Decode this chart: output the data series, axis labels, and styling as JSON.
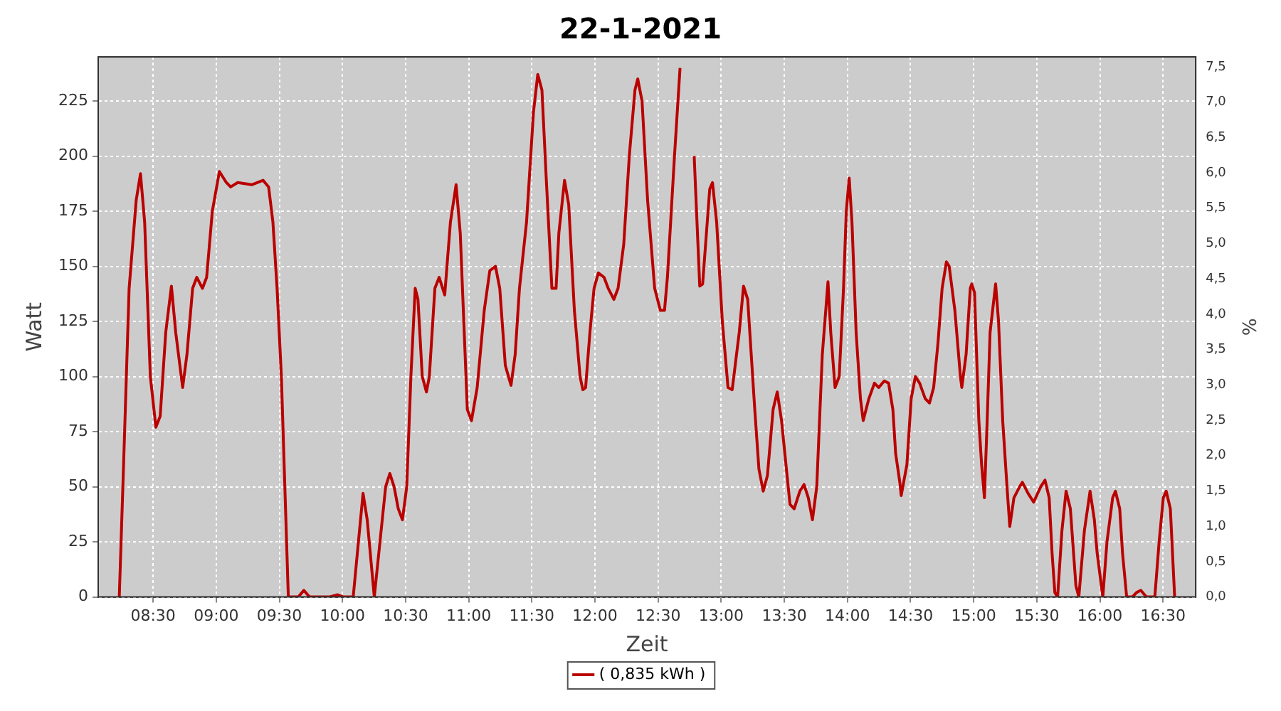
{
  "chart_data": {
    "type": "line",
    "title": "22-1-2021",
    "xlabel": "Zeit",
    "ylabel": "Watt",
    "y2label": "%",
    "xlim": [
      8.065,
      16.759
    ],
    "xticks": [
      {
        "value": 8.5,
        "label": "08:30"
      },
      {
        "value": 9,
        "label": "09:00"
      },
      {
        "value": 9.5,
        "label": "09:30"
      },
      {
        "value": 10,
        "label": "10:00"
      },
      {
        "value": 10.5,
        "label": "10:30"
      },
      {
        "value": 11,
        "label": "11:00"
      },
      {
        "value": 11.5,
        "label": "11:30"
      },
      {
        "value": 12,
        "label": "12:00"
      },
      {
        "value": 12.5,
        "label": "12:30"
      },
      {
        "value": 13,
        "label": "13:00"
      },
      {
        "value": 13.5,
        "label": "13:30"
      },
      {
        "value": 14,
        "label": "14:00"
      },
      {
        "value": 14.5,
        "label": "14:30"
      },
      {
        "value": 15,
        "label": "15:00"
      },
      {
        "value": 15.5,
        "label": "15:30"
      },
      {
        "value": 16,
        "label": "16:00"
      },
      {
        "value": 16.5,
        "label": "16:30"
      }
    ],
    "ylim": [
      0,
      245
    ],
    "yticks": [
      0,
      25,
      50,
      75,
      100,
      125,
      150,
      175,
      200,
      225
    ],
    "y2lim": [
      0,
      7.64
    ],
    "y2ticks": [
      {
        "value": 0,
        "label": "0,0"
      },
      {
        "value": 0.5,
        "label": "0,5"
      },
      {
        "value": 1,
        "label": "1,0"
      },
      {
        "value": 1.5,
        "label": "1,5"
      },
      {
        "value": 2,
        "label": "2,0"
      },
      {
        "value": 2.5,
        "label": "2,5"
      },
      {
        "value": 3,
        "label": "3,0"
      },
      {
        "value": 3.5,
        "label": "3,5"
      },
      {
        "value": 4,
        "label": "4,0"
      },
      {
        "value": 4.5,
        "label": "4,5"
      },
      {
        "value": 5,
        "label": "5,0"
      },
      {
        "value": 5.5,
        "label": "5,5"
      },
      {
        "value": 6,
        "label": "6,0"
      },
      {
        "value": 6.5,
        "label": "6,5"
      },
      {
        "value": 7,
        "label": "7,0"
      },
      {
        "value": 7.5,
        "label": "7,5"
      }
    ],
    "grid": true,
    "legend": "bottom",
    "marker": "none",
    "line_style": "solid",
    "series": [
      {
        "name": "( 0,835 kWh )",
        "color": "#bb0000",
        "x": [
          8.232,
          8.266,
          8.31,
          8.366,
          8.4,
          8.433,
          8.478,
          8.522,
          8.556,
          8.6,
          8.645,
          8.679,
          8.734,
          8.768,
          8.813,
          8.846,
          8.891,
          8.924,
          8.969,
          9.025,
          9.08,
          9.114,
          9.17,
          9.281,
          9.371,
          9.415,
          9.449,
          9.482,
          9.516,
          9.549,
          9.571,
          9.65,
          9.694,
          9.739,
          9.895,
          9.962,
          10.007,
          10.085,
          10.118,
          10.163,
          10.196,
          10.252,
          10.297,
          10.342,
          10.375,
          10.409,
          10.442,
          10.475,
          10.509,
          10.542,
          10.576,
          10.598,
          10.632,
          10.665,
          10.688,
          10.732,
          10.766,
          10.81,
          10.855,
          10.9,
          10.933,
          10.989,
          11.022,
          11.067,
          11.123,
          11.167,
          11.212,
          11.246,
          11.29,
          11.335,
          11.368,
          11.402,
          11.458,
          11.513,
          11.547,
          11.58,
          11.614,
          11.659,
          11.692,
          11.714,
          11.759,
          11.792,
          11.837,
          11.882,
          11.904,
          11.926,
          11.96,
          11.993,
          12.027,
          12.072,
          12.105,
          12.15,
          12.183,
          12.228,
          12.272,
          12.317,
          12.339,
          12.373,
          12.417,
          12.473,
          12.518,
          12.551,
          12.574,
          12.63,
          12.674,
          12.696,
          12.752,
          12.786,
          12.83,
          12.853,
          12.909,
          12.931,
          12.964,
          13.009,
          13.054,
          13.087,
          13.143,
          13.177,
          13.21,
          13.266,
          13.299,
          13.333,
          13.366,
          13.411,
          13.444,
          13.478,
          13.522,
          13.545,
          13.578,
          13.623,
          13.656,
          13.69,
          13.723,
          13.757,
          13.801,
          13.835,
          13.846,
          13.868,
          13.902,
          13.935,
          13.969,
          13.991,
          14.014,
          14.036,
          14.069,
          14.103,
          14.125,
          14.17,
          14.214,
          14.248,
          14.292,
          14.326,
          14.36,
          14.382,
          14.415,
          14.426,
          14.471,
          14.505,
          14.538,
          14.572,
          14.616,
          14.65,
          14.683,
          14.717,
          14.75,
          14.784,
          14.806,
          14.851,
          14.895,
          14.906,
          14.94,
          14.973,
          14.985,
          15.007,
          15.029,
          15.041,
          15.063,
          15.085,
          15.107,
          15.13,
          15.174,
          15.197,
          15.23,
          15.264,
          15.286,
          15.319,
          15.364,
          15.386,
          15.431,
          15.475,
          15.531,
          15.565,
          15.598,
          15.621,
          15.643,
          15.665,
          15.699,
          15.732,
          15.766,
          15.81,
          15.833,
          15.877,
          15.922,
          15.956,
          15.978,
          16.023,
          16.056,
          16.101,
          16.123,
          16.157,
          16.179,
          16.212,
          16.257,
          16.29,
          16.324,
          16.368,
          16.435,
          16.469,
          16.502,
          16.525,
          16.558,
          16.592
        ],
        "values": [
          0,
          60,
          140,
          180,
          192,
          170,
          100,
          77,
          82,
          120,
          141,
          120,
          95,
          110,
          140,
          145,
          140,
          145,
          175,
          193,
          188,
          186,
          188,
          187,
          189,
          186,
          170,
          140,
          100,
          40,
          0,
          0,
          3,
          0,
          0,
          1,
          0,
          0,
          20,
          47,
          35,
          0,
          25,
          50,
          56,
          50,
          40,
          35,
          50,
          100,
          140,
          135,
          100,
          93,
          100,
          140,
          145,
          137,
          170,
          187,
          165,
          85,
          80,
          95,
          130,
          148,
          150,
          140,
          105,
          96,
          110,
          140,
          170,
          220,
          237,
          230,
          190,
          140,
          140,
          165,
          189,
          178,
          130,
          100,
          94,
          95,
          120,
          140,
          147,
          145,
          140,
          135,
          140,
          160,
          200,
          230,
          235,
          225,
          180,
          140,
          130,
          130,
          145,
          200,
          240,
          null,
          null,
          200,
          141,
          142,
          185,
          188,
          170,
          125,
          95,
          94,
          120,
          141,
          135,
          85,
          58,
          48,
          55,
          85,
          93,
          80,
          55,
          42,
          40,
          48,
          51,
          45,
          35,
          50,
          110,
          135,
          143,
          120,
          95,
          100,
          140,
          175,
          190,
          170,
          120,
          90,
          80,
          90,
          97,
          95,
          98,
          97,
          85,
          65,
          52,
          46,
          60,
          90,
          100,
          97,
          90,
          88,
          95,
          115,
          140,
          152,
          150,
          130,
          100,
          95,
          110,
          140,
          142,
          138,
          100,
          80,
          60,
          45,
          80,
          120,
          142,
          125,
          80,
          50,
          32,
          45,
          50,
          52,
          47,
          43,
          50,
          53,
          45,
          20,
          2,
          0,
          30,
          48,
          40,
          5,
          0,
          30,
          48,
          35,
          20,
          0,
          25,
          45,
          48,
          40,
          20,
          0,
          0,
          2,
          3,
          0,
          0,
          25,
          45,
          48,
          40,
          0
        ]
      }
    ]
  }
}
